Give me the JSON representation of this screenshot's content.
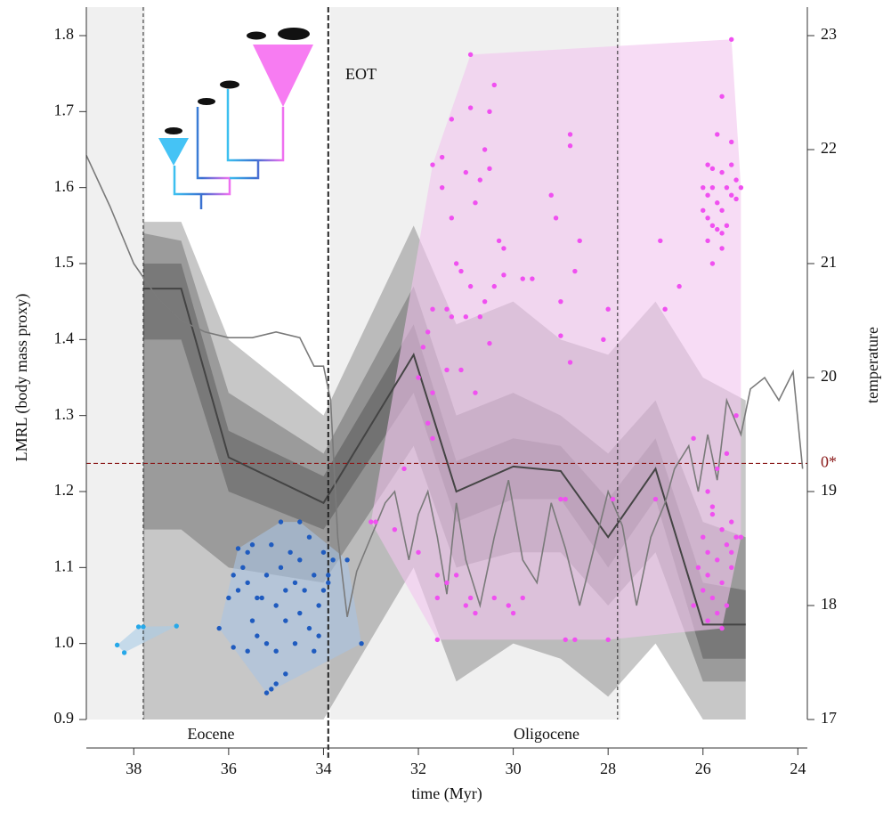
{
  "chart_data": {
    "type": "scatter",
    "y_label": "LMRL (body mass proxy)",
    "y2_label": "temperature",
    "x_label": "time (Myr)",
    "xlim": [
      39,
      23.8
    ],
    "ylim": [
      0.9,
      1.8375
    ],
    "y2lim": [
      17,
      23.25
    ],
    "xticks": [
      38,
      36,
      34,
      32,
      30,
      28,
      26,
      24
    ],
    "yticks": [
      0.9,
      {
        "value": 1,
        "label": "1.0"
      },
      1.1,
      1.2,
      1.3,
      1.4,
      1.5,
      1.6,
      1.7,
      1.8
    ],
    "y2ticks": [
      17,
      18,
      19,
      20,
      21,
      22,
      23
    ],
    "annotations": [
      "EOT"
    ],
    "period_labels": [
      "Eocene",
      "Oligocene"
    ],
    "boundaries": [
      37.8,
      33.9,
      27.8
    ],
    "reference_line": {
      "value": 1.237,
      "label": "0*",
      "color": "#8b1a1a"
    },
    "series": [
      {
        "color": "#27a8e8",
        "hull_color": "#a9cbe6",
        "x": [
          38.35,
          38.2,
          37.9,
          37.8,
          37.1
        ],
        "values": [
          0.998,
          0.988,
          1.022,
          1.022,
          1.023
        ]
      },
      {
        "color": "#1f5bbf",
        "hull_color": "#a9c3e3",
        "x": [
          36.0,
          35.9,
          35.8,
          35.7,
          35.6,
          35.6,
          35.5,
          35.4,
          35.3,
          35.2,
          35.2,
          35.1,
          35.0,
          35.0,
          34.9,
          34.9,
          34.8,
          34.8,
          34.7,
          34.6,
          34.6,
          34.5,
          34.5,
          34.4,
          34.3,
          34.3,
          34.2,
          34.1,
          34.1,
          34.0,
          34.0,
          33.9,
          33.8,
          33.5,
          33.2,
          35.8,
          35.1,
          35.2,
          35.0,
          36.2,
          35.6,
          35.4,
          34.8,
          33.9,
          34.5,
          35.5,
          35.9,
          34.2
        ],
        "values": [
          1.06,
          1.09,
          1.07,
          1.1,
          1.12,
          1.08,
          1.03,
          1.01,
          1.06,
          1.09,
          1.0,
          1.13,
          1.05,
          0.99,
          1.16,
          1.1,
          1.07,
          1.03,
          1.12,
          1.08,
          1.0,
          1.11,
          1.04,
          1.07,
          1.02,
          1.14,
          1.09,
          1.05,
          1.01,
          1.12,
          1.07,
          1.09,
          1.11,
          1.11,
          1.0,
          1.125,
          0.94,
          0.935,
          0.947,
          1.02,
          0.99,
          1.06,
          0.96,
          1.08,
          1.16,
          1.13,
          0.995,
          0.99
        ]
      },
      {
        "color": "#f050f0",
        "hull_color": "#f2c4ee",
        "x": [
          30.9,
          30.4,
          30.9,
          30.5,
          30.6,
          31.3,
          31.5,
          31.5,
          31.7,
          31.0,
          30.7,
          30.5,
          31.3,
          30.8,
          29.2,
          29.1,
          28.8,
          28.8,
          28.6,
          30.3,
          30.2,
          31.2,
          31.1,
          30.9,
          30.6,
          30.4,
          30.2,
          29.8,
          29.6,
          28.7,
          29.0,
          31.4,
          31.3,
          31.0,
          30.7,
          30.5,
          31.8,
          31.7,
          29.0,
          28.1,
          28.0,
          28.8,
          31.9,
          32.0,
          31.7,
          31.4,
          31.1,
          30.8,
          31.8,
          31.7,
          32.3,
          33.0,
          32.9,
          32.5,
          32.0,
          31.6,
          31.4,
          31.2,
          31.6,
          31.0,
          30.8,
          30.4,
          30.1,
          29.8,
          29.0,
          28.9,
          28.7,
          28.9,
          28.0,
          27.9,
          31.6,
          30.9,
          30.0,
          26.9,
          26.8,
          26.5,
          25.6,
          25.7,
          25.4,
          25.4,
          25.9,
          25.8,
          25.6,
          25.4,
          25.3,
          25.2,
          26.0,
          25.9,
          25.8,
          25.7,
          25.6,
          25.5,
          25.4,
          25.3,
          26.0,
          25.9,
          25.8,
          25.7,
          25.6,
          25.5,
          25.9,
          25.6,
          25.8,
          25.5,
          25.3,
          25.8,
          27.0,
          26.2,
          25.7,
          25.9,
          25.8,
          25.6,
          25.4,
          25.3,
          25.2,
          26.0,
          25.9,
          25.7,
          25.5,
          25.4,
          26.1,
          25.9,
          25.6,
          25.8,
          26.0,
          25.7,
          25.5,
          25.6,
          25.4,
          26.2,
          25.9
        ],
        "values": [
          1.775,
          1.735,
          1.705,
          1.7,
          1.65,
          1.69,
          1.64,
          1.6,
          1.63,
          1.62,
          1.61,
          1.625,
          1.56,
          1.58,
          1.59,
          1.56,
          1.67,
          1.655,
          1.53,
          1.53,
          1.52,
          1.5,
          1.49,
          1.47,
          1.45,
          1.47,
          1.485,
          1.48,
          1.48,
          1.49,
          1.45,
          1.44,
          1.43,
          1.43,
          1.43,
          1.395,
          1.41,
          1.44,
          1.405,
          1.4,
          1.44,
          1.37,
          1.39,
          1.35,
          1.33,
          1.36,
          1.36,
          1.33,
          1.29,
          1.27,
          1.23,
          1.16,
          1.16,
          1.15,
          1.12,
          1.09,
          1.08,
          1.09,
          1.06,
          1.05,
          1.04,
          1.06,
          1.05,
          1.06,
          1.19,
          1.19,
          1.005,
          1.005,
          1.005,
          1.19,
          1.005,
          1.06,
          1.04,
          1.53,
          1.44,
          1.47,
          1.72,
          1.67,
          1.66,
          1.795,
          1.63,
          1.625,
          1.62,
          1.63,
          1.61,
          1.6,
          1.6,
          1.59,
          1.6,
          1.58,
          1.57,
          1.6,
          1.59,
          1.585,
          1.57,
          1.56,
          1.55,
          1.545,
          1.54,
          1.55,
          1.53,
          1.52,
          1.5,
          1.25,
          1.3,
          1.18,
          1.19,
          1.27,
          1.23,
          1.2,
          1.17,
          1.15,
          1.16,
          1.14,
          1.14,
          1.14,
          1.12,
          1.11,
          1.13,
          1.12,
          1.1,
          1.09,
          1.08,
          1.06,
          1.07,
          1.04,
          1.05,
          1.02,
          1.1,
          1.05,
          1.03
        ]
      }
    ],
    "envelope": {
      "color": "#000000",
      "median_color": "#444444",
      "x": [
        37.8,
        37.0,
        36.0,
        34.0,
        32.1,
        31.2,
        30.0,
        29.0,
        28.0,
        27.0,
        26.0,
        25.1
      ],
      "median": [
        1.467,
        1.467,
        1.245,
        1.185,
        1.38,
        1.2,
        1.233,
        1.227,
        1.14,
        1.23,
        1.025,
        1.025
      ],
      "bands": [
        {
          "upper": [
            1.555,
            1.555,
            1.4,
            1.3,
            1.55,
            1.42,
            1.45,
            1.4,
            1.38,
            1.45,
            1.35,
            1.32
          ],
          "lower": [
            0.9,
            0.9,
            0.9,
            0.9,
            1.1,
            0.95,
            1.0,
            0.98,
            0.93,
            1.0,
            0.9,
            0.9
          ]
        },
        {
          "upper": [
            1.54,
            1.53,
            1.33,
            1.25,
            1.47,
            1.3,
            1.33,
            1.3,
            1.25,
            1.32,
            1.16,
            1.14
          ],
          "lower": [
            1.15,
            1.15,
            1.1,
            1.08,
            1.26,
            1.1,
            1.12,
            1.12,
            1.05,
            1.12,
            0.95,
            0.95
          ]
        },
        {
          "upper": [
            1.5,
            1.5,
            1.28,
            1.22,
            1.42,
            1.24,
            1.27,
            1.26,
            1.19,
            1.27,
            1.08,
            1.07
          ],
          "lower": [
            1.4,
            1.4,
            1.2,
            1.15,
            1.33,
            1.16,
            1.19,
            1.19,
            1.1,
            1.19,
            0.98,
            0.98
          ]
        }
      ]
    },
    "temperature": {
      "color": "#7a7a7a",
      "axis": "y2",
      "x": [
        39,
        38.5,
        38,
        37.5,
        37,
        36.5,
        36,
        35.5,
        35,
        34.5,
        34.2,
        34,
        33.85,
        33.7,
        33.5,
        33.3,
        33.1,
        32.9,
        32.7,
        32.5,
        32.2,
        32,
        31.8,
        31.6,
        31.4,
        31.2,
        31,
        30.7,
        30.4,
        30.1,
        29.8,
        29.5,
        29.2,
        28.9,
        28.6,
        28.3,
        28,
        27.7,
        27.4,
        27.1,
        26.8,
        26.6,
        26.3,
        26.1,
        25.9,
        25.7,
        25.5,
        25.2,
        25,
        24.7,
        24.4,
        24.1,
        23.9
      ],
      "values": [
        21.95,
        21.5,
        21.0,
        20.7,
        20.5,
        20.4,
        20.35,
        20.35,
        20.4,
        20.35,
        20.1,
        20.1,
        19.8,
        18.6,
        17.9,
        18.3,
        18.5,
        18.7,
        18.9,
        19.0,
        18.4,
        18.8,
        19.0,
        18.6,
        18.1,
        18.9,
        18.4,
        18.0,
        18.6,
        19.1,
        18.4,
        18.2,
        18.9,
        18.5,
        18.0,
        18.5,
        19.0,
        18.7,
        18.0,
        18.6,
        18.9,
        19.2,
        19.4,
        19.0,
        19.5,
        19.1,
        19.8,
        19.5,
        19.9,
        20.0,
        19.8,
        20.05,
        19.2
      ]
    }
  }
}
